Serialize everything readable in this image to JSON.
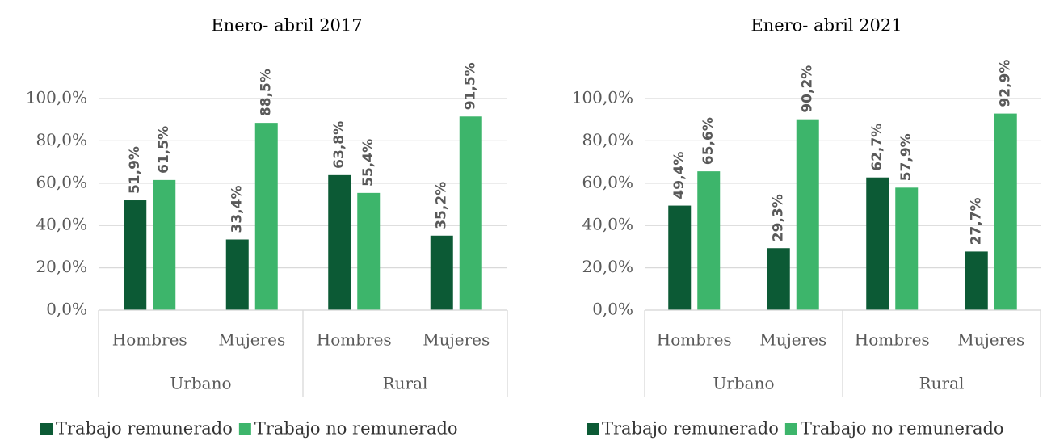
{
  "chart_data": [
    {
      "type": "bar",
      "title": "Enero- abril  2017",
      "categories": [
        "Hombres",
        "Mujeres",
        "Hombres",
        "Mujeres"
      ],
      "category_groups": [
        "Urbano",
        "Rural"
      ],
      "series": [
        {
          "name": "Trabajo remunerado",
          "color": "#0c5a35",
          "values": [
            51.9,
            33.4,
            63.8,
            35.2
          ],
          "value_labels": [
            "51,9%",
            "33,4%",
            "63,8%",
            "35,2%"
          ]
        },
        {
          "name": "Trabajo no remunerado",
          "color": "#3db56b",
          "values": [
            61.5,
            88.5,
            55.4,
            91.5
          ],
          "value_labels": [
            "61,5%",
            "88,5%",
            "55,4%",
            "91,5%"
          ]
        }
      ],
      "ylim": [
        0,
        100
      ],
      "yticks": [
        {
          "value": 0,
          "label": "0,0%"
        },
        {
          "value": 20,
          "label": "20,0%"
        },
        {
          "value": 40,
          "label": "40,0%"
        },
        {
          "value": 60,
          "label": "60,0%"
        },
        {
          "value": 80,
          "label": "80,0%"
        },
        {
          "value": 100,
          "label": "100,0%"
        }
      ],
      "grid": true,
      "legend": "bottom"
    },
    {
      "type": "bar",
      "title": "Enero- abril  2021",
      "categories": [
        "Hombres",
        "Mujeres",
        "Hombres",
        "Mujeres"
      ],
      "category_groups": [
        "Urbano",
        "Rural"
      ],
      "series": [
        {
          "name": "Trabajo remunerado",
          "color": "#0c5a35",
          "values": [
            49.4,
            29.3,
            62.7,
            27.7
          ],
          "value_labels": [
            "49,4%",
            "29,3%",
            "62,7%",
            "27,7%"
          ]
        },
        {
          "name": "Trabajo no remunerado",
          "color": "#3db56b",
          "values": [
            65.6,
            90.2,
            57.9,
            92.9
          ],
          "value_labels": [
            "65,6%",
            "90,2%",
            "57,9%",
            "92,9%"
          ]
        }
      ],
      "ylim": [
        0,
        100
      ],
      "yticks": [
        {
          "value": 0,
          "label": "0,0%"
        },
        {
          "value": 20,
          "label": "20,0%"
        },
        {
          "value": 40,
          "label": "40,0%"
        },
        {
          "value": 60,
          "label": "60,0%"
        },
        {
          "value": 80,
          "label": "80,0%"
        },
        {
          "value": 100,
          "label": "100,0%"
        }
      ],
      "grid": true,
      "legend": "bottom"
    }
  ]
}
